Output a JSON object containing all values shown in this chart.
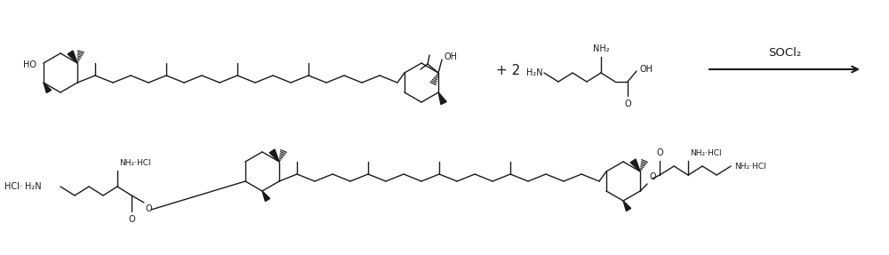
{
  "background_color": "#ffffff",
  "line_color": "#1a1a1a",
  "text_color": "#1a1a1a",
  "line_width": 1.0,
  "font_size": 7.0,
  "font_size_large": 9.5,
  "reagent": "SOCl₂",
  "ho_label": "HO",
  "oh_label": "OH",
  "nh2_label": "NH₂",
  "h2n_label": "H₂N",
  "o_label": "O",
  "plus2": "+ 2",
  "nh2hcl_1": "NH₂·HCl",
  "nh2hcl_2": "NH₂·HCl",
  "nh2hcl_3": "NH₂·HCl",
  "hcl_h2n": "HCl· H₂N"
}
